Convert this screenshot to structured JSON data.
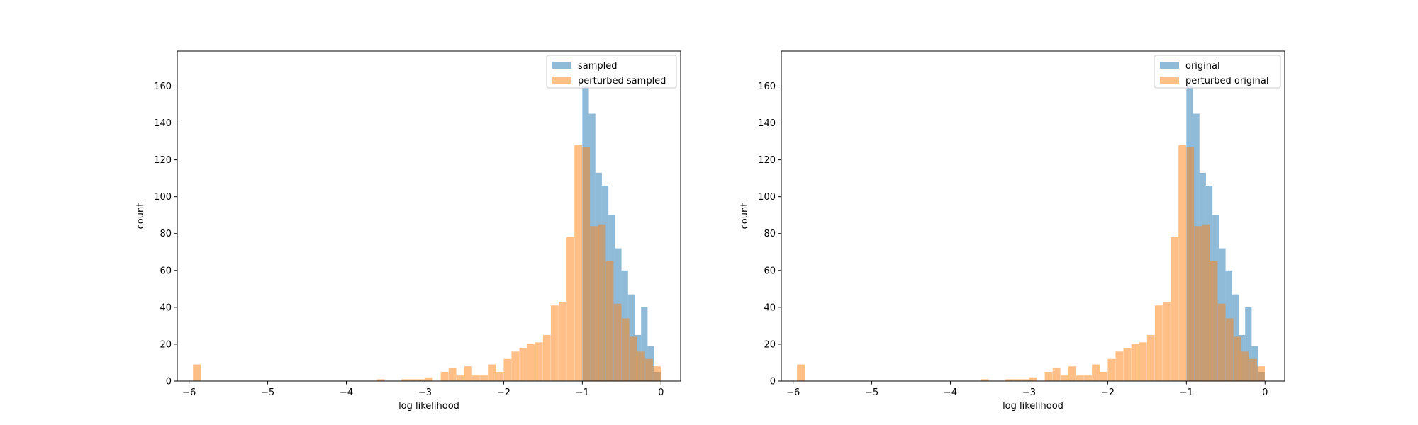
{
  "chart_data": [
    {
      "type": "histogram",
      "xlabel": "log likelihood",
      "ylabel": "count",
      "xlim": [
        -6.15,
        0.25
      ],
      "ylim": [
        0,
        179
      ],
      "xticks": [
        -6,
        -5,
        -4,
        -3,
        -2,
        -1,
        0
      ],
      "yticks": [
        0,
        20,
        40,
        60,
        80,
        100,
        120,
        140,
        160
      ],
      "legend_position": "top-right",
      "series": [
        {
          "name": "sampled",
          "color": "#1f77b4",
          "bin_width": 0.083,
          "bins": [
            {
              "x0": -1.0,
              "count": 160
            },
            {
              "x0": -0.917,
              "count": 145
            },
            {
              "x0": -0.834,
              "count": 113
            },
            {
              "x0": -0.751,
              "count": 106
            },
            {
              "x0": -0.668,
              "count": 90
            },
            {
              "x0": -0.585,
              "count": 72
            },
            {
              "x0": -0.502,
              "count": 60
            },
            {
              "x0": -0.419,
              "count": 47
            },
            {
              "x0": -0.336,
              "count": 25
            },
            {
              "x0": -0.253,
              "count": 40
            },
            {
              "x0": -0.17,
              "count": 19
            },
            {
              "x0": -0.087,
              "count": 5
            }
          ]
        },
        {
          "name": "perturbed sampled",
          "color": "#ff7f0e",
          "bin_width": 0.0975,
          "bins": [
            {
              "x0": -5.95,
              "count": 9
            },
            {
              "x0": -3.61,
              "count": 1
            },
            {
              "x0": -3.3,
              "count": 1
            },
            {
              "x0": -3.2,
              "count": 1
            },
            {
              "x0": -3.1,
              "count": 1
            },
            {
              "x0": -3.0,
              "count": 2
            },
            {
              "x0": -2.8,
              "count": 5
            },
            {
              "x0": -2.7,
              "count": 7
            },
            {
              "x0": -2.6,
              "count": 3
            },
            {
              "x0": -2.5,
              "count": 8
            },
            {
              "x0": -2.4,
              "count": 3
            },
            {
              "x0": -2.3,
              "count": 3
            },
            {
              "x0": -2.2,
              "count": 9
            },
            {
              "x0": -2.1,
              "count": 5
            },
            {
              "x0": -2.0,
              "count": 12
            },
            {
              "x0": -1.9,
              "count": 16
            },
            {
              "x0": -1.8,
              "count": 18
            },
            {
              "x0": -1.7,
              "count": 20
            },
            {
              "x0": -1.6,
              "count": 21
            },
            {
              "x0": -1.5,
              "count": 25
            },
            {
              "x0": -1.4,
              "count": 41
            },
            {
              "x0": -1.3,
              "count": 43
            },
            {
              "x0": -1.2,
              "count": 78
            },
            {
              "x0": -1.1,
              "count": 128
            },
            {
              "x0": -1.0,
              "count": 127
            },
            {
              "x0": -0.9,
              "count": 84
            },
            {
              "x0": -0.8,
              "count": 85
            },
            {
              "x0": -0.7,
              "count": 65
            },
            {
              "x0": -0.6,
              "count": 42
            },
            {
              "x0": -0.5,
              "count": 34
            },
            {
              "x0": -0.4,
              "count": 24
            },
            {
              "x0": -0.3,
              "count": 16
            },
            {
              "x0": -0.2,
              "count": 12
            },
            {
              "x0": -0.1,
              "count": 8
            }
          ]
        }
      ]
    },
    {
      "type": "histogram",
      "xlabel": "log likelihood",
      "ylabel": "count",
      "xlim": [
        -6.15,
        0.25
      ],
      "ylim": [
        0,
        179
      ],
      "xticks": [
        -6,
        -5,
        -4,
        -3,
        -2,
        -1,
        0
      ],
      "yticks": [
        0,
        20,
        40,
        60,
        80,
        100,
        120,
        140,
        160
      ],
      "legend_position": "top-right",
      "series": [
        {
          "name": "original",
          "color": "#1f77b4",
          "bin_width": 0.083,
          "bins": [
            {
              "x0": -1.0,
              "count": 160
            },
            {
              "x0": -0.917,
              "count": 145
            },
            {
              "x0": -0.834,
              "count": 113
            },
            {
              "x0": -0.751,
              "count": 106
            },
            {
              "x0": -0.668,
              "count": 90
            },
            {
              "x0": -0.585,
              "count": 72
            },
            {
              "x0": -0.502,
              "count": 60
            },
            {
              "x0": -0.419,
              "count": 47
            },
            {
              "x0": -0.336,
              "count": 25
            },
            {
              "x0": -0.253,
              "count": 40
            },
            {
              "x0": -0.17,
              "count": 19
            },
            {
              "x0": -0.087,
              "count": 5
            }
          ]
        },
        {
          "name": "perturbed original",
          "color": "#ff7f0e",
          "bin_width": 0.0975,
          "bins": [
            {
              "x0": -5.95,
              "count": 9
            },
            {
              "x0": -3.61,
              "count": 1
            },
            {
              "x0": -3.3,
              "count": 1
            },
            {
              "x0": -3.2,
              "count": 1
            },
            {
              "x0": -3.1,
              "count": 1
            },
            {
              "x0": -3.0,
              "count": 2
            },
            {
              "x0": -2.8,
              "count": 5
            },
            {
              "x0": -2.7,
              "count": 7
            },
            {
              "x0": -2.6,
              "count": 3
            },
            {
              "x0": -2.5,
              "count": 8
            },
            {
              "x0": -2.4,
              "count": 3
            },
            {
              "x0": -2.3,
              "count": 3
            },
            {
              "x0": -2.2,
              "count": 9
            },
            {
              "x0": -2.1,
              "count": 5
            },
            {
              "x0": -2.0,
              "count": 12
            },
            {
              "x0": -1.9,
              "count": 16
            },
            {
              "x0": -1.8,
              "count": 18
            },
            {
              "x0": -1.7,
              "count": 20
            },
            {
              "x0": -1.6,
              "count": 21
            },
            {
              "x0": -1.5,
              "count": 25
            },
            {
              "x0": -1.4,
              "count": 41
            },
            {
              "x0": -1.3,
              "count": 43
            },
            {
              "x0": -1.2,
              "count": 78
            },
            {
              "x0": -1.1,
              "count": 128
            },
            {
              "x0": -1.0,
              "count": 127
            },
            {
              "x0": -0.9,
              "count": 84
            },
            {
              "x0": -0.8,
              "count": 85
            },
            {
              "x0": -0.7,
              "count": 65
            },
            {
              "x0": -0.6,
              "count": 42
            },
            {
              "x0": -0.5,
              "count": 34
            },
            {
              "x0": -0.4,
              "count": 24
            },
            {
              "x0": -0.3,
              "count": 16
            },
            {
              "x0": -0.2,
              "count": 12
            },
            {
              "x0": -0.1,
              "count": 8
            }
          ]
        }
      ]
    }
  ]
}
